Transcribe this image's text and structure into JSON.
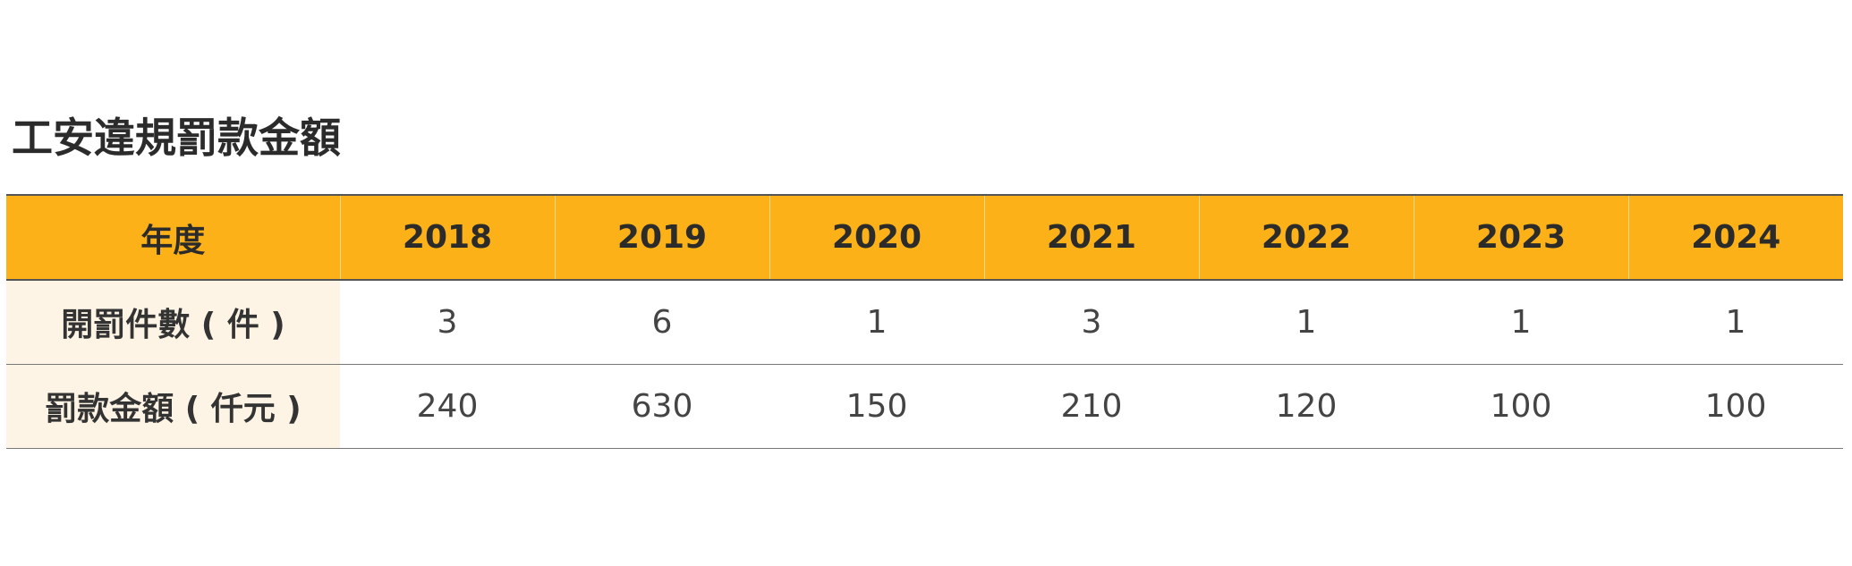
{
  "title": "工安違規罰款金額",
  "table": {
    "header": [
      "年度",
      "2018",
      "2019",
      "2020",
      "2021",
      "2022",
      "2023",
      "2024"
    ],
    "rows": [
      [
        "開罰件數 ( 件 )",
        3,
        6,
        1,
        3,
        1,
        1,
        1
      ],
      [
        "罰款金額 ( 仟元 )",
        240,
        630,
        150,
        210,
        120,
        100,
        100
      ]
    ]
  }
}
